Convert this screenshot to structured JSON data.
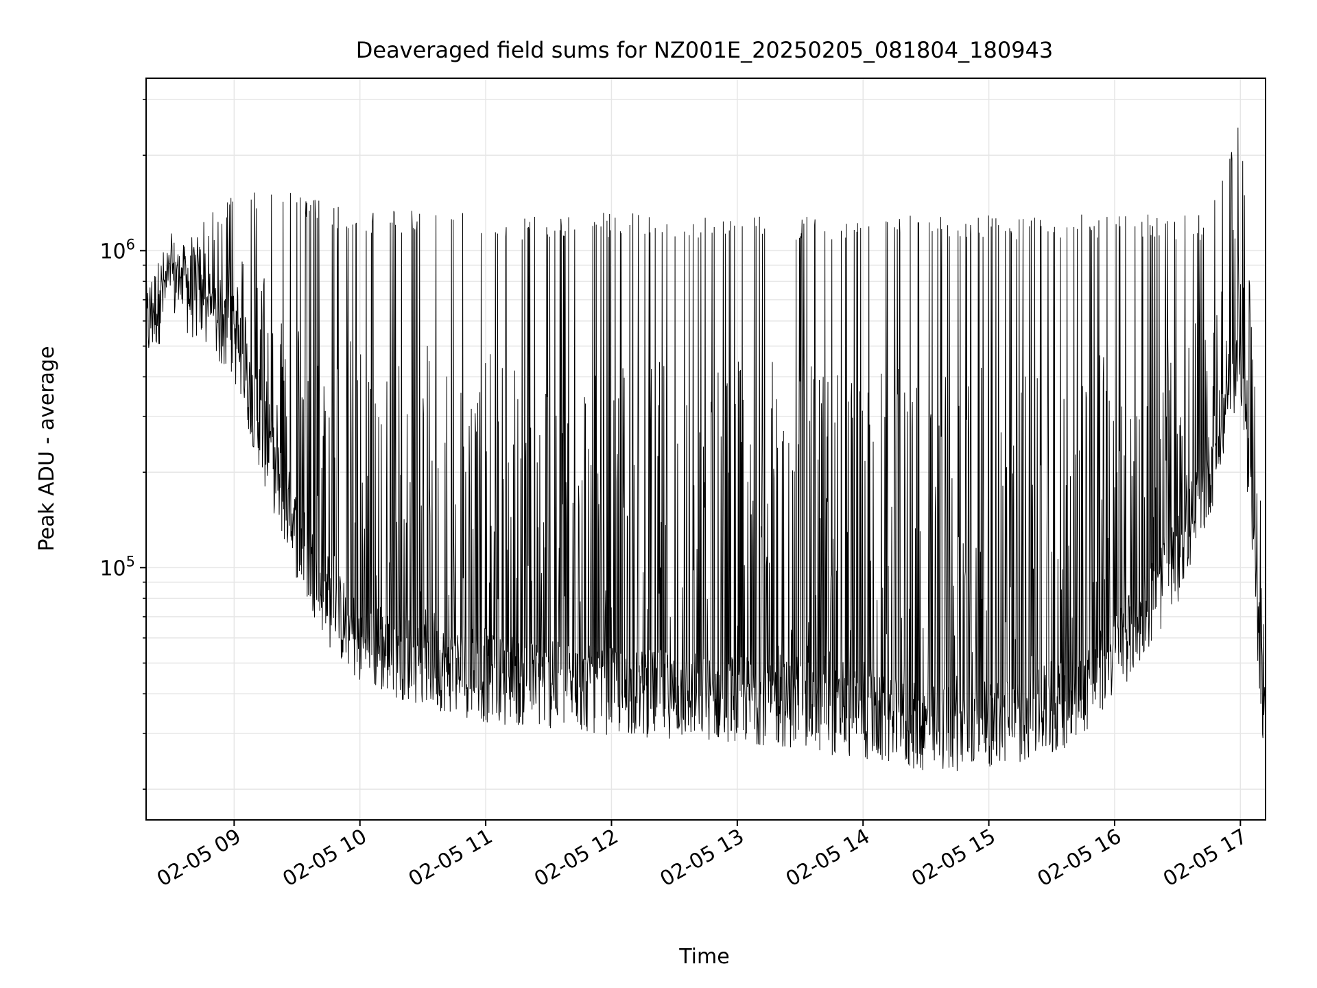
{
  "chart_data": {
    "type": "line",
    "title": "Deaveraged field sums for NZ001E_20250205_081804_180943",
    "xlabel": "Time",
    "ylabel": "Peak ADU - average",
    "y_scale": "log",
    "y_tick_labels": [
      {
        "base": "10",
        "exp": "6",
        "value": 1000000
      },
      {
        "base": "10",
        "exp": "5",
        "value": 100000
      }
    ],
    "x_tick_labels": [
      "02-05 09",
      "02-05 10",
      "02-05 11",
      "02-05 12",
      "02-05 13",
      "02-05 14",
      "02-05 15",
      "02-05 16",
      "02-05 17"
    ],
    "x_tick_times": [
      "2025-02-05 09:00",
      "2025-02-05 10:00",
      "2025-02-05 11:00",
      "2025-02-05 12:00",
      "2025-02-05 13:00",
      "2025-02-05 14:00",
      "2025-02-05 15:00",
      "2025-02-05 16:00",
      "2025-02-05 17:00"
    ],
    "xlim": [
      "2025-02-05 08:18",
      "2025-02-05 17:12"
    ],
    "ylim": [
      16000,
      3500000
    ],
    "grid": true,
    "line_color": "#000000",
    "series_envelope": {
      "time": [
        "2025-02-05 08:18",
        "2025-02-05 08:30",
        "2025-02-05 08:45",
        "2025-02-05 09:00",
        "2025-02-05 09:15",
        "2025-02-05 09:30",
        "2025-02-05 09:45",
        "2025-02-05 10:00",
        "2025-02-05 10:30",
        "2025-02-05 11:00",
        "2025-02-05 11:30",
        "2025-02-05 12:00",
        "2025-02-05 12:30",
        "2025-02-05 13:00",
        "2025-02-05 13:30",
        "2025-02-05 14:00",
        "2025-02-05 14:30",
        "2025-02-05 15:00",
        "2025-02-05 15:30",
        "2025-02-05 15:45",
        "2025-02-05 16:00",
        "2025-02-05 16:15",
        "2025-02-05 16:30",
        "2025-02-05 16:45",
        "2025-02-05 17:00",
        "2025-02-05 17:06",
        "2025-02-05 17:12"
      ],
      "baseline": [
        600000,
        850000,
        700000,
        550000,
        250000,
        130000,
        80000,
        60000,
        52000,
        46000,
        44000,
        42000,
        41000,
        40000,
        38000,
        35000,
        32000,
        33000,
        36000,
        42000,
        55000,
        75000,
        110000,
        200000,
        500000,
        120000,
        30000
      ],
      "peak": [
        700000,
        1000000,
        1300000,
        1500000,
        1600000,
        1550000,
        1400000,
        1350000,
        1350000,
        1300000,
        1300000,
        1320000,
        1300000,
        1300000,
        1280000,
        1300000,
        1300000,
        1300000,
        1300000,
        1300000,
        1300000,
        1300000,
        1300000,
        1300000,
        2900000,
        500000,
        100000
      ]
    }
  }
}
